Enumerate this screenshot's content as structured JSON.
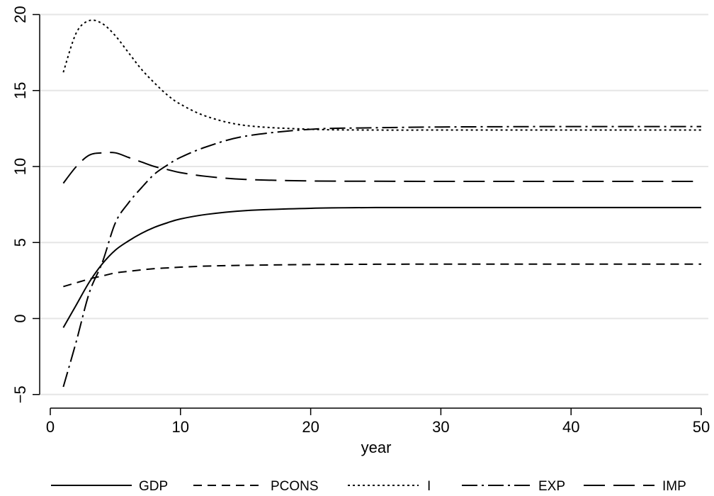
{
  "chart_data": {
    "type": "line",
    "title": "",
    "xlabel": "year",
    "ylabel": "",
    "xlim": [
      0,
      50
    ],
    "ylim": [
      -5,
      20
    ],
    "xticks": [
      "0",
      "10",
      "20",
      "30",
      "40",
      "50"
    ],
    "yticks": [
      "−5",
      "0",
      "5",
      "10",
      "15",
      "20"
    ],
    "grid": "horizontal",
    "legend_position": "bottom",
    "x": [
      1,
      2,
      3,
      4,
      5,
      6,
      7,
      8,
      9,
      10,
      12,
      15,
      20,
      25,
      30,
      35,
      40,
      45,
      50
    ],
    "series": [
      {
        "name": "GDP",
        "dash": "solid",
        "values": [
          -0.6,
          0.9,
          2.4,
          3.6,
          4.5,
          5.1,
          5.6,
          6.0,
          6.3,
          6.55,
          6.85,
          7.1,
          7.25,
          7.3,
          7.3,
          7.3,
          7.3,
          7.3,
          7.3
        ]
      },
      {
        "name": "PCONS",
        "dash": "dashed",
        "values": [
          2.1,
          2.35,
          2.6,
          2.8,
          3.0,
          3.1,
          3.2,
          3.28,
          3.33,
          3.38,
          3.45,
          3.5,
          3.55,
          3.57,
          3.58,
          3.58,
          3.58,
          3.58,
          3.58
        ]
      },
      {
        "name": "I",
        "dash": "dotted",
        "values": [
          16.2,
          18.8,
          19.6,
          19.4,
          18.6,
          17.5,
          16.4,
          15.5,
          14.7,
          14.1,
          13.3,
          12.7,
          12.45,
          12.4,
          12.4,
          12.4,
          12.4,
          12.4,
          12.4
        ]
      },
      {
        "name": "EXP",
        "dash": "dash-dot",
        "values": [
          -4.5,
          -1.5,
          1.7,
          3.7,
          6.3,
          7.6,
          8.6,
          9.5,
          10.1,
          10.6,
          11.3,
          12.0,
          12.45,
          12.55,
          12.6,
          12.62,
          12.63,
          12.63,
          12.63
        ]
      },
      {
        "name": "IMP",
        "dash": "long-dash",
        "values": [
          8.9,
          10.0,
          10.75,
          10.9,
          10.9,
          10.6,
          10.3,
          10.0,
          9.8,
          9.6,
          9.35,
          9.15,
          9.05,
          9.03,
          9.02,
          9.02,
          9.02,
          9.02,
          9.02
        ]
      }
    ]
  }
}
